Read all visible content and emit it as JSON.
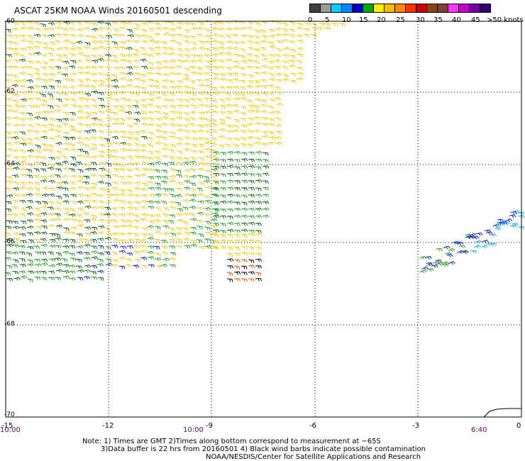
{
  "title": "ASCAT 25KM NOAA Winds 20160501 descending",
  "colorbar": {
    "colors": [
      "#404040",
      "#9a9a9a",
      "#00ccff",
      "#0088ff",
      "#0000cc",
      "#00aa00",
      "#ffee00",
      "#ffbb00",
      "#ff8800",
      "#ff3300",
      "#cc0000",
      "#8b4513",
      "#7a4030",
      "#ff33ff",
      "#cc00cc",
      "#7700aa",
      "#330077"
    ],
    "labels": [
      "0",
      "5",
      "10",
      "15",
      "20",
      "25",
      "30",
      "35",
      "40",
      "45",
      ">50 knots"
    ]
  },
  "axes": {
    "lat_labels": [
      "-60",
      "-62",
      "-64",
      "-66",
      "-68",
      "-70"
    ],
    "lon_labels": [
      "-15",
      "-12",
      "-9",
      "-6",
      "-3",
      "0"
    ]
  },
  "times": [
    "10:00",
    "10:00",
    "6:40"
  ],
  "notes": [
    "Note: 1) Times are GMT 2)Times along bottom correspond to measurement at ~65S",
    "3)Data buffer is 22 hrs from 20160501 4) Black wind barbs indicate possible contamination",
    "NOAA/NESDIS/Center for Satellite Applications and Research"
  ],
  "wind_colors": {
    "yellow": "#f5c800",
    "green": "#1e9e1e",
    "dark_green": "#0b5e0b",
    "blue": "#1515cc",
    "cyan": "#00b0e0",
    "orange": "#e05a00",
    "black": "#000000"
  }
}
